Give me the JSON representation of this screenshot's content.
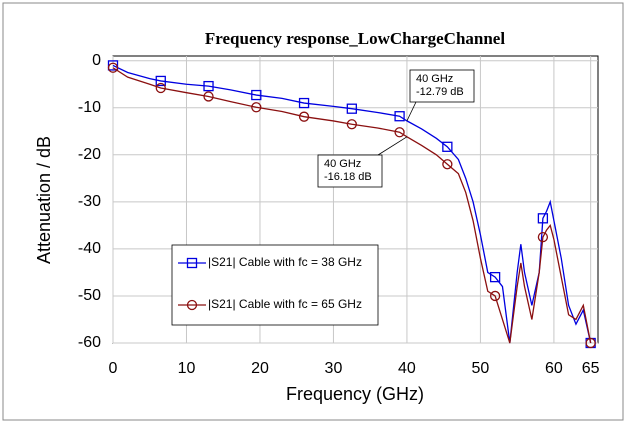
{
  "chart_data": {
    "type": "line",
    "title": "Frequency response_LowChargeChannel",
    "x_label": "Frequency (GHz)",
    "y_label": "Attenuation / dB",
    "x": [
      0,
      2,
      5,
      6.5,
      10,
      13,
      16,
      19.5,
      23,
      26,
      30,
      32.5,
      36,
      39,
      40,
      42,
      44,
      45.5,
      47,
      48,
      49,
      50,
      51,
      52,
      53,
      54,
      55,
      55.5,
      56,
      57,
      58,
      58.5,
      59,
      59.5,
      60,
      61,
      62,
      63,
      64,
      65
    ],
    "series": [
      {
        "name": "|S21| Cable with fc = 38 GHz",
        "color": "#0000e0",
        "values": [
          -1,
          -2.5,
          -3.8,
          -4.3,
          -5,
          -5.4,
          -6.2,
          -7.3,
          -8,
          -9,
          -9.7,
          -10.2,
          -11,
          -11.8,
          -12.79,
          -14.5,
          -16.5,
          -18.3,
          -21,
          -25,
          -30,
          -37,
          -45,
          -46,
          -48,
          -60,
          -45,
          -39,
          -45,
          -52,
          -45,
          -33.5,
          -32,
          -30,
          -34,
          -42,
          -52,
          -56,
          -53,
          -60
        ]
      },
      {
        "name": "|S21| Cable with fc = 65 GHz",
        "color": "#8b1010",
        "values": [
          -1.5,
          -3.5,
          -5,
          -5.8,
          -6.8,
          -7.6,
          -8.7,
          -9.9,
          -10.8,
          -11.9,
          -12.8,
          -13.5,
          -14.3,
          -15.2,
          -16.18,
          -18,
          -20,
          -22,
          -24,
          -28,
          -34,
          -42,
          -49,
          -50,
          -55,
          -60,
          -48,
          -43,
          -48,
          -55,
          -45,
          -37.5,
          -36,
          -35,
          -38,
          -46,
          -54,
          -55,
          -52,
          -60
        ]
      }
    ],
    "xlim": [
      0,
      66
    ],
    "xticks": [
      0,
      10,
      20,
      30,
      40,
      50,
      60,
      65
    ],
    "ylim": [
      -60,
      1
    ],
    "yticks": [
      0,
      -10,
      -20,
      -30,
      -40,
      -50,
      -60
    ],
    "grid": true,
    "annotations": [
      {
        "x": 40,
        "y": -12.79,
        "lines": [
          "40 GHz",
          "-12.79 dB"
        ]
      },
      {
        "x": 40,
        "y": -16.18,
        "lines": [
          "40 GHz",
          "-16.18 dB"
        ]
      }
    ]
  }
}
